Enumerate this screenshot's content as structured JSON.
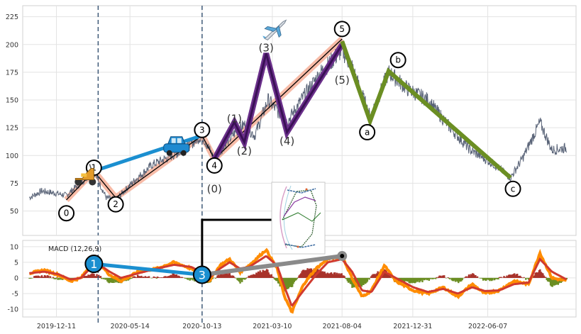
{
  "chart_data": [
    {
      "type": "line",
      "panel": "price",
      "x_dates": [
        "2019-12-11",
        "2020-05-14",
        "2020-10-13",
        "2021-03-10",
        "2021-08-04",
        "2021-12-31",
        "2022-06-07"
      ],
      "ylim": [
        28,
        235
      ],
      "y_ticks": [
        50,
        75,
        100,
        125,
        150,
        175,
        200,
        225
      ],
      "grid": true,
      "series": [
        {
          "role": "price",
          "color": "#5a6478",
          "anchors": [
            [
              "2019-10-15",
              62
            ],
            [
              "2019-11-10",
              68
            ],
            [
              "2019-12-10",
              66
            ],
            [
              "2020-01-01",
              64
            ],
            [
              "2020-02-12",
              80
            ],
            [
              "2020-02-28",
              86
            ],
            [
              "2020-03-25",
              62
            ],
            [
              "2020-04-14",
              60
            ],
            [
              "2020-05-20",
              76
            ],
            [
              "2020-07-01",
              92
            ],
            [
              "2020-09-01",
              104
            ],
            [
              "2020-10-13",
              118
            ],
            [
              "2020-11-08",
              97
            ],
            [
              "2020-12-01",
              110
            ],
            [
              "2020-12-20",
              120
            ],
            [
              "2021-01-10",
              128
            ],
            [
              "2021-02-01",
              118
            ],
            [
              "2021-03-01",
              150
            ],
            [
              "2021-04-10",
              130
            ],
            [
              "2021-05-10",
              150
            ],
            [
              "2021-06-20",
              175
            ],
            [
              "2021-08-04",
              195
            ],
            [
              "2021-08-25",
              180
            ],
            [
              "2021-10-02",
              135
            ],
            [
              "2021-11-10",
              175
            ],
            [
              "2021-12-20",
              160
            ],
            [
              "2022-02-01",
              150
            ],
            [
              "2022-03-20",
              125
            ],
            [
              "2022-05-01",
              105
            ],
            [
              "2022-06-20",
              92
            ],
            [
              "2022-07-25",
              80
            ],
            [
              "2022-08-20",
              98
            ],
            [
              "2022-09-25",
              130
            ],
            [
              "2022-10-20",
              105
            ],
            [
              "2022-11-20",
              107
            ]
          ]
        }
      ],
      "wave_labels": [
        {
          "label": "0",
          "date": "2020-01-01",
          "y": 48,
          "circled": true
        },
        {
          "label": "1",
          "date": "2020-02-28",
          "y": 89,
          "circled": true
        },
        {
          "label": "2",
          "date": "2020-04-14",
          "y": 56,
          "circled": true
        },
        {
          "label": "3",
          "date": "2020-10-13",
          "y": 123,
          "circled": true
        },
        {
          "label": "4",
          "date": "2020-11-08",
          "y": 91,
          "circled": true
        },
        {
          "label": "(0)",
          "date": "2020-11-08",
          "y": 70,
          "circled": false
        },
        {
          "label": "(1)",
          "date": "2020-12-20",
          "y": 133,
          "circled": false
        },
        {
          "label": "(2)",
          "date": "2021-01-10",
          "y": 104,
          "circled": false
        },
        {
          "label": "(3)",
          "date": "2021-02-25",
          "y": 197,
          "circled": false
        },
        {
          "label": "(4)",
          "date": "2021-04-10",
          "y": 113,
          "circled": false
        },
        {
          "label": "(5)",
          "date": "2021-08-04",
          "y": 168,
          "circled": false
        },
        {
          "label": "5",
          "date": "2021-08-04",
          "y": 214,
          "circled": true
        },
        {
          "label": "a",
          "date": "2021-09-26",
          "y": 121,
          "circled": true
        },
        {
          "label": "b",
          "date": "2021-11-30",
          "y": 186,
          "circled": true
        },
        {
          "label": "c",
          "date": "2022-07-30",
          "y": 70,
          "circled": true
        }
      ],
      "wave_lines": [
        {
          "role": "salmon-band",
          "color": "#f4a48a",
          "points": [
            [
              "2020-01-01",
              60
            ],
            [
              "2020-02-28",
              86
            ],
            [
              "2020-04-14",
              62
            ],
            [
              "2020-10-13",
              118
            ],
            [
              "2020-11-08",
              97
            ],
            [
              "2021-08-04",
              205
            ]
          ]
        },
        {
          "role": "thin-black",
          "color": "#000000",
          "points": [
            [
              "2020-01-01",
              60
            ],
            [
              "2020-02-28",
              86
            ],
            [
              "2020-04-14",
              62
            ],
            [
              "2020-10-13",
              118
            ],
            [
              "2020-11-08",
              97
            ],
            [
              "2021-08-04",
              205
            ]
          ]
        },
        {
          "role": "blue-link",
          "color": "#1b8fd0",
          "points": [
            [
              "2020-02-28",
              86
            ],
            [
              "2020-10-13",
              118
            ]
          ]
        },
        {
          "role": "purple-outline",
          "color": "#6a2f8a",
          "points": [
            [
              "2020-11-08",
              97
            ],
            [
              "2020-12-20",
              130
            ],
            [
              "2021-01-10",
              112
            ],
            [
              "2021-02-25",
              192
            ],
            [
              "2021-04-10",
              121
            ],
            [
              "2021-08-04",
              200
            ]
          ]
        },
        {
          "role": "purple-inner",
          "color": "#3a1055",
          "points": [
            [
              "2020-11-08",
              97
            ],
            [
              "2020-12-20",
              130
            ],
            [
              "2021-01-10",
              112
            ],
            [
              "2021-02-25",
              192
            ],
            [
              "2021-04-10",
              121
            ],
            [
              "2021-08-04",
              200
            ]
          ]
        },
        {
          "role": "green-abc",
          "color": "#6b8e23",
          "points": [
            [
              "2021-08-04",
              203
            ],
            [
              "2021-10-02",
              131
            ],
            [
              "2021-11-10",
              176
            ],
            [
              "2022-07-25",
              80
            ]
          ]
        }
      ],
      "icons": [
        {
          "name": "scooter-icon",
          "date": "2020-02-10",
          "y": 82
        },
        {
          "name": "car-icon",
          "date": "2020-08-20",
          "y": 108
        },
        {
          "name": "airplane-icon",
          "date": "2021-03-15",
          "y": 213
        }
      ],
      "vlines": [
        "2020-03-08",
        "2020-10-13"
      ]
    },
    {
      "type": "line",
      "panel": "macd",
      "title": "MACD (12,26,9)",
      "ylim": [
        -12.5,
        12
      ],
      "y_ticks": [
        10,
        5,
        0,
        -5,
        -10
      ],
      "grid": true,
      "x_tick_labels": [
        "2019-12-11",
        "2020-05-14",
        "2020-10-13",
        "2021-03-10",
        "2021-08-04",
        "2021-12-31",
        "2022-06-07"
      ],
      "series": [
        {
          "role": "macd",
          "color": "#ff8c00",
          "anchors": [
            [
              "2019-10-15",
              1.5
            ],
            [
              "2019-11-15",
              2.5
            ],
            [
              "2019-12-15",
              1
            ],
            [
              "2020-01-10",
              -1
            ],
            [
              "2020-02-01",
              0
            ],
            [
              "2020-02-20",
              4
            ],
            [
              "2020-03-08",
              5
            ],
            [
              "2020-04-01",
              1
            ],
            [
              "2020-04-25",
              -1
            ],
            [
              "2020-06-01",
              2
            ],
            [
              "2020-07-10",
              3
            ],
            [
              "2020-08-15",
              5
            ],
            [
              "2020-09-20",
              3
            ],
            [
              "2020-10-13",
              1
            ],
            [
              "2020-10-28",
              -1
            ],
            [
              "2020-11-20",
              4
            ],
            [
              "2020-12-10",
              6
            ],
            [
              "2021-01-01",
              2
            ],
            [
              "2021-01-20",
              4
            ],
            [
              "2021-02-25",
              9
            ],
            [
              "2021-03-20",
              3
            ],
            [
              "2021-04-05",
              -6
            ],
            [
              "2021-04-20",
              -11
            ],
            [
              "2021-05-15",
              -2
            ],
            [
              "2021-06-10",
              3
            ],
            [
              "2021-07-05",
              6
            ],
            [
              "2021-08-04",
              7
            ],
            [
              "2021-08-25",
              0
            ],
            [
              "2021-09-15",
              -6
            ],
            [
              "2021-10-05",
              -4
            ],
            [
              "2021-11-01",
              4
            ],
            [
              "2021-11-25",
              -1
            ],
            [
              "2022-01-01",
              -4
            ],
            [
              "2022-02-01",
              -5
            ],
            [
              "2022-03-05",
              -3
            ],
            [
              "2022-04-05",
              -6
            ],
            [
              "2022-05-05",
              -2
            ],
            [
              "2022-06-01",
              -5
            ],
            [
              "2022-07-01",
              -4
            ],
            [
              "2022-08-01",
              -1
            ],
            [
              "2022-09-01",
              -2
            ],
            [
              "2022-09-25",
              8
            ],
            [
              "2022-10-20",
              0
            ],
            [
              "2022-11-20",
              -1
            ]
          ]
        },
        {
          "role": "signal",
          "color": "#d03a2f",
          "anchors": [
            [
              "2019-10-15",
              1.5
            ],
            [
              "2019-11-15",
              2
            ],
            [
              "2019-12-15",
              1.2
            ],
            [
              "2020-01-10",
              -0.5
            ],
            [
              "2020-02-01",
              0
            ],
            [
              "2020-02-20",
              3
            ],
            [
              "2020-03-08",
              4.5
            ],
            [
              "2020-04-01",
              2
            ],
            [
              "2020-04-25",
              0
            ],
            [
              "2020-06-01",
              1.5
            ],
            [
              "2020-07-10",
              3
            ],
            [
              "2020-08-15",
              4.2
            ],
            [
              "2020-09-20",
              3.5
            ],
            [
              "2020-10-13",
              1.8
            ],
            [
              "2020-10-28",
              0
            ],
            [
              "2020-11-20",
              3
            ],
            [
              "2020-12-10",
              5
            ],
            [
              "2021-01-01",
              3
            ],
            [
              "2021-01-20",
              3.5
            ],
            [
              "2021-02-25",
              7
            ],
            [
              "2021-03-20",
              4
            ],
            [
              "2021-04-05",
              -3
            ],
            [
              "2021-04-20",
              -9
            ],
            [
              "2021-05-15",
              -4
            ],
            [
              "2021-06-10",
              1
            ],
            [
              "2021-07-05",
              5
            ],
            [
              "2021-08-04",
              6
            ],
            [
              "2021-08-25",
              2
            ],
            [
              "2021-09-15",
              -4
            ],
            [
              "2021-10-05",
              -4.5
            ],
            [
              "2021-11-01",
              2
            ],
            [
              "2021-11-25",
              0
            ],
            [
              "2022-01-01",
              -3
            ],
            [
              "2022-02-01",
              -4.5
            ],
            [
              "2022-03-05",
              -3.5
            ],
            [
              "2022-04-05",
              -5
            ],
            [
              "2022-05-05",
              -3
            ],
            [
              "2022-06-01",
              -4.2
            ],
            [
              "2022-07-01",
              -4
            ],
            [
              "2022-08-01",
              -2
            ],
            [
              "2022-09-01",
              -1.5
            ],
            [
              "2022-09-25",
              6
            ],
            [
              "2022-10-20",
              2
            ],
            [
              "2022-11-20",
              -0.5
            ]
          ]
        }
      ],
      "histogram_colors": {
        "positive": "#a8322a",
        "negative": "#6b8e23"
      },
      "wave_labels": [
        {
          "label": "1",
          "date": "2020-02-28",
          "y": 4.5,
          "fill": "#1b8fd0"
        },
        {
          "label": "3",
          "date": "2020-10-13",
          "y": 1,
          "fill": "#1b8fd0"
        }
      ],
      "wave_lines": [
        {
          "role": "blue-link",
          "color": "#1b8fd0",
          "points": [
            [
              "2020-02-28",
              4.5
            ],
            [
              "2020-10-13",
              1
            ]
          ]
        },
        {
          "role": "grey-link",
          "color": "#8a8a8a",
          "points": [
            [
              "2020-10-13",
              1
            ],
            [
              "2021-08-04",
              7
            ]
          ]
        }
      ],
      "vlines": [
        "2020-03-08",
        "2020-10-13"
      ]
    }
  ]
}
